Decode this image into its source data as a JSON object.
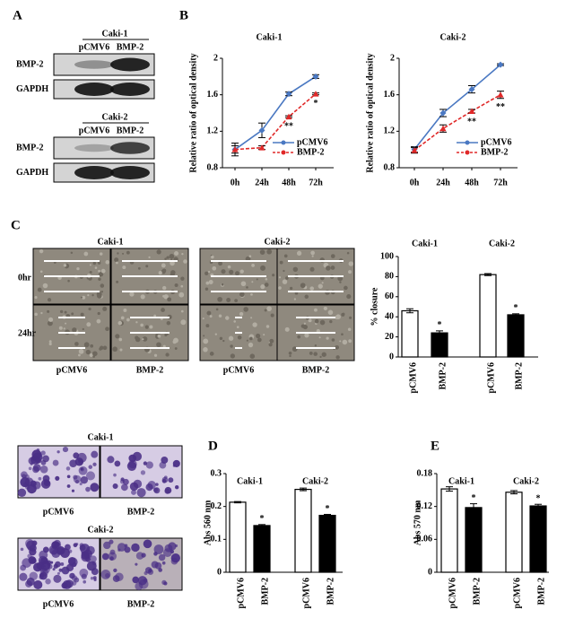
{
  "panel_labels": [
    "A",
    "B",
    "C",
    "D",
    "E"
  ],
  "blots": [
    {
      "title": "Caki-1",
      "lanes": [
        "pCMV6",
        "BMP-2"
      ],
      "rows": [
        "BMP-2",
        "GAPDH"
      ]
    },
    {
      "title": "Caki-2",
      "lanes": [
        "pCMV6",
        "BMP-2"
      ],
      "rows": [
        "BMP-2",
        "GAPDH"
      ]
    }
  ],
  "wound": {
    "titles": [
      "Caki-1",
      "Caki-2"
    ],
    "rows": [
      "0hr",
      "24hr"
    ],
    "lanes": [
      "pCMV6",
      "BMP-2",
      "pCMV6",
      "BMP-2"
    ]
  },
  "invasion": [
    {
      "title": "Caki-1",
      "lanes": [
        "pCMV6",
        "BMP-2"
      ]
    },
    {
      "title": "Caki-2",
      "lanes": [
        "pCMV6",
        "BMP-2"
      ]
    }
  ],
  "chart_data": [
    {
      "type": "line",
      "title": "Caki-1",
      "y_label": "Relative ratio of optical density",
      "categories": [
        "0h",
        "24h",
        "48h",
        "72h"
      ],
      "ylim": [
        0.8,
        2
      ],
      "yticks": [
        0.8,
        1.2,
        1.6,
        2
      ],
      "legend": "lower right",
      "series": [
        {
          "name": "pCMV6",
          "color": "#4a78c2",
          "dashed": false,
          "marker": "diamond",
          "values": [
            1.0,
            1.21,
            1.61,
            1.8
          ],
          "errors": [
            0.07,
            0.08,
            0.02,
            0.02
          ]
        },
        {
          "name": "BMP-2",
          "color": "#e02828",
          "dashed": true,
          "marker": "triangle",
          "values": [
            1.0,
            1.02,
            1.36,
            1.61
          ],
          "errors": [
            0.04,
            0.02,
            0.01,
            0.01
          ],
          "annotations": [
            null,
            null,
            "**",
            "*"
          ]
        }
      ]
    },
    {
      "type": "line",
      "title": "Caki-2",
      "y_label": "Relative ratio of optical density",
      "categories": [
        "0h",
        "24h",
        "48h",
        "72h"
      ],
      "ylim": [
        0.8,
        2
      ],
      "yticks": [
        0.8,
        1.2,
        1.6,
        2
      ],
      "legend": "lower right",
      "series": [
        {
          "name": "pCMV6",
          "color": "#4a78c2",
          "dashed": false,
          "marker": "diamond",
          "values": [
            1.0,
            1.4,
            1.66,
            1.93
          ],
          "errors": [
            0.03,
            0.04,
            0.04,
            0.01
          ]
        },
        {
          "name": "BMP-2",
          "color": "#e02828",
          "dashed": true,
          "marker": "triangle",
          "values": [
            0.99,
            1.23,
            1.42,
            1.6
          ],
          "errors": [
            0.03,
            0.04,
            0.02,
            0.04
          ],
          "annotations": [
            null,
            null,
            "**",
            "**"
          ]
        }
      ]
    },
    {
      "type": "bar",
      "y_label": "% closure",
      "groups": [
        "Caki-1",
        "Caki-2"
      ],
      "categories": [
        "pCMV6",
        "BMP-2",
        "pCMV6",
        "BMP-2"
      ],
      "values": [
        46,
        24,
        82,
        42
      ],
      "errors": [
        2,
        2,
        1,
        1
      ],
      "colors": [
        "#ffffff",
        "#000000",
        "#ffffff",
        "#000000"
      ],
      "annotations": [
        null,
        "*",
        null,
        "*"
      ],
      "ylim": [
        0,
        100
      ],
      "yticks": [
        0,
        20,
        40,
        60,
        80,
        100
      ]
    },
    {
      "type": "bar",
      "y_label": "Abs 560 nm",
      "groups": [
        "Caki-1",
        "Caki-2"
      ],
      "categories": [
        "pCMV6",
        "BMP-2",
        "pCMV6",
        "BMP-2"
      ],
      "values": [
        0.213,
        0.142,
        0.252,
        0.173
      ],
      "errors": [
        0.002,
        0.003,
        0.004,
        0.003
      ],
      "colors": [
        "#ffffff",
        "#000000",
        "#ffffff",
        "#000000"
      ],
      "annotations": [
        null,
        "*",
        null,
        "*"
      ],
      "ylim": [
        0,
        0.3
      ],
      "yticks": [
        0,
        0.1,
        0.2,
        0.3
      ]
    },
    {
      "type": "bar",
      "y_label": "Abs 570 nm",
      "groups": [
        "Caki-1",
        "Caki-2"
      ],
      "categories": [
        "pCMV6",
        "BMP-2",
        "pCMV6",
        "BMP-2"
      ],
      "values": [
        0.152,
        0.118,
        0.146,
        0.121
      ],
      "errors": [
        0.004,
        0.007,
        0.003,
        0.003
      ],
      "colors": [
        "#ffffff",
        "#000000",
        "#ffffff",
        "#000000"
      ],
      "annotations": [
        null,
        "*",
        null,
        "*"
      ],
      "ylim": [
        0,
        0.18
      ],
      "yticks": [
        0,
        0.06,
        0.12,
        0.18
      ]
    }
  ]
}
